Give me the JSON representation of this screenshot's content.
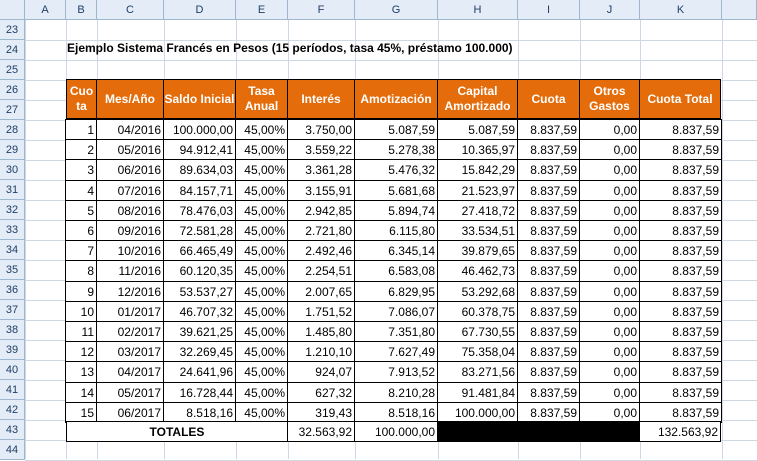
{
  "columns": [
    "A",
    "B",
    "C",
    "D",
    "E",
    "F",
    "G",
    "H",
    "I",
    "J",
    "K"
  ],
  "rows": [
    "23",
    "24",
    "25",
    "26",
    "27",
    "28",
    "29",
    "30",
    "31",
    "32",
    "33",
    "34",
    "35",
    "36",
    "37",
    "38",
    "39",
    "40",
    "41",
    "42",
    "43",
    "44"
  ],
  "title": "Ejemplo Sistema Francés en Pesos (15 períodos, tasa 45%, préstamo 100.000)",
  "headers": {
    "cuota_num": "Cuo ta",
    "mes": "Mes/Año",
    "saldo": "Saldo Inicial",
    "tasa": "Tasa Anual",
    "interes": "Interés",
    "amort": "Amotización",
    "capital": "Capital Amortizado",
    "cuota": "Cuota",
    "otros": "Otros Gastos",
    "total": "Cuota Total"
  },
  "table": [
    [
      "1",
      "04/2016",
      "100.000,00",
      "45,00%",
      "3.750,00",
      "5.087,59",
      "5.087,59",
      "8.837,59",
      "0,00",
      "8.837,59"
    ],
    [
      "2",
      "05/2016",
      "94.912,41",
      "45,00%",
      "3.559,22",
      "5.278,38",
      "10.365,97",
      "8.837,59",
      "0,00",
      "8.837,59"
    ],
    [
      "3",
      "06/2016",
      "89.634,03",
      "45,00%",
      "3.361,28",
      "5.476,32",
      "15.842,29",
      "8.837,59",
      "0,00",
      "8.837,59"
    ],
    [
      "4",
      "07/2016",
      "84.157,71",
      "45,00%",
      "3.155,91",
      "5.681,68",
      "21.523,97",
      "8.837,59",
      "0,00",
      "8.837,59"
    ],
    [
      "5",
      "08/2016",
      "78.476,03",
      "45,00%",
      "2.942,85",
      "5.894,74",
      "27.418,72",
      "8.837,59",
      "0,00",
      "8.837,59"
    ],
    [
      "6",
      "09/2016",
      "72.581,28",
      "45,00%",
      "2.721,80",
      "6.115,80",
      "33.534,51",
      "8.837,59",
      "0,00",
      "8.837,59"
    ],
    [
      "7",
      "10/2016",
      "66.465,49",
      "45,00%",
      "2.492,46",
      "6.345,14",
      "39.879,65",
      "8.837,59",
      "0,00",
      "8.837,59"
    ],
    [
      "8",
      "11/2016",
      "60.120,35",
      "45,00%",
      "2.254,51",
      "6.583,08",
      "46.462,73",
      "8.837,59",
      "0,00",
      "8.837,59"
    ],
    [
      "9",
      "12/2016",
      "53.537,27",
      "45,00%",
      "2.007,65",
      "6.829,95",
      "53.292,68",
      "8.837,59",
      "0,00",
      "8.837,59"
    ],
    [
      "10",
      "01/2017",
      "46.707,32",
      "45,00%",
      "1.751,52",
      "7.086,07",
      "60.378,75",
      "8.837,59",
      "0,00",
      "8.837,59"
    ],
    [
      "11",
      "02/2017",
      "39.621,25",
      "45,00%",
      "1.485,80",
      "7.351,80",
      "67.730,55",
      "8.837,59",
      "0,00",
      "8.837,59"
    ],
    [
      "12",
      "03/2017",
      "32.269,45",
      "45,00%",
      "1.210,10",
      "7.627,49",
      "75.358,04",
      "8.837,59",
      "0,00",
      "8.837,59"
    ],
    [
      "13",
      "04/2017",
      "24.641,96",
      "45,00%",
      "924,07",
      "7.913,52",
      "83.271,56",
      "8.837,59",
      "0,00",
      "8.837,59"
    ],
    [
      "14",
      "05/2017",
      "16.728,44",
      "45,00%",
      "627,32",
      "8.210,28",
      "91.481,84",
      "8.837,59",
      "0,00",
      "8.837,59"
    ],
    [
      "15",
      "06/2017",
      "8.518,16",
      "45,00%",
      "319,43",
      "8.518,16",
      "100.000,00",
      "8.837,59",
      "0,00",
      "8.837,59"
    ]
  ],
  "totals": {
    "label": "TOTALES",
    "interes": "32.563,92",
    "amort": "100.000,00",
    "total": "132.563,92"
  },
  "colors": {
    "header_bg": "#e46c0a",
    "header_text": "#ffffff",
    "sheet_header_bg": "#e4ecf7"
  }
}
